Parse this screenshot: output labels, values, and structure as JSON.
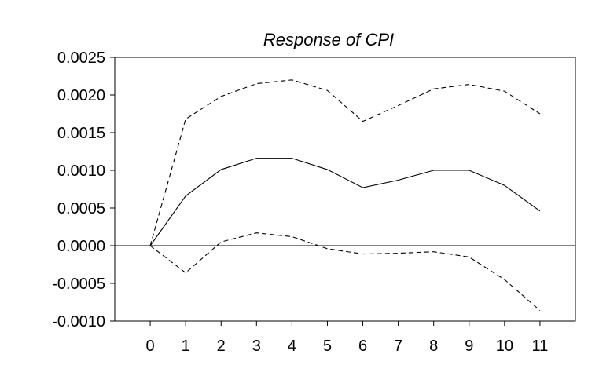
{
  "chart_data": {
    "type": "line",
    "title": "Response of CPI",
    "xlabel": "",
    "ylabel": "",
    "x": [
      0,
      1,
      2,
      3,
      4,
      5,
      6,
      7,
      8,
      9,
      10,
      11
    ],
    "xtick_labels": [
      "0",
      "1",
      "2",
      "3",
      "4",
      "5",
      "6",
      "7",
      "8",
      "9",
      "10",
      "11"
    ],
    "xlim": [
      -1,
      12
    ],
    "ylim": [
      -0.001,
      0.0025
    ],
    "yticks": [
      0.0025,
      0.002,
      0.0015,
      0.001,
      0.0005,
      0.0,
      -0.0005,
      -0.001
    ],
    "ytick_labels": [
      "0.0025",
      "0.0020",
      "0.0015",
      "0.0010",
      "0.0005",
      "0.0000",
      "-0.0005",
      "-0.0010"
    ],
    "zero_line": 0,
    "grid": false,
    "series": [
      {
        "style": "solid",
        "values": [
          0.0,
          0.00066,
          0.00101,
          0.00116,
          0.00116,
          0.00101,
          0.00077,
          0.00087,
          0.001,
          0.001,
          0.0008,
          0.00046
        ]
      },
      {
        "style": "dashed",
        "values": [
          0.0,
          0.00168,
          0.00198,
          0.00215,
          0.0022,
          0.00206,
          0.00165,
          0.00186,
          0.00208,
          0.00214,
          0.00205,
          0.00175
        ]
      },
      {
        "style": "dashed",
        "values": [
          0.0,
          -0.00036,
          5e-05,
          0.00017,
          0.00012,
          -4e-05,
          -0.00011,
          -0.0001,
          -8e-05,
          -0.00015,
          -0.00045,
          -0.00086
        ]
      }
    ],
    "colors": {
      "line": "#000000",
      "frame": "#000000"
    }
  }
}
